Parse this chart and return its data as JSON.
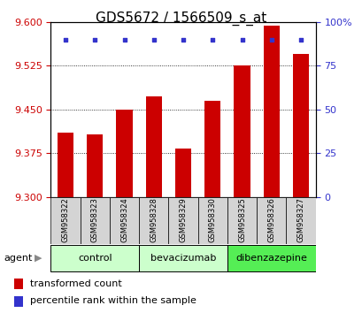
{
  "title": "GDS5672 / 1566509_s_at",
  "categories": [
    "GSM958322",
    "GSM958323",
    "GSM958324",
    "GSM958328",
    "GSM958329",
    "GSM958330",
    "GSM958325",
    "GSM958326",
    "GSM958327"
  ],
  "bar_values": [
    9.41,
    9.407,
    9.45,
    9.472,
    9.383,
    9.465,
    9.525,
    9.593,
    9.545
  ],
  "percentile_values": [
    90,
    90,
    90,
    90,
    90,
    90,
    90,
    90,
    90
  ],
  "bar_color": "#cc0000",
  "dot_color": "#3333cc",
  "ylim_left": [
    9.3,
    9.6
  ],
  "ylim_right": [
    0,
    100
  ],
  "yticks_left": [
    9.3,
    9.375,
    9.45,
    9.525,
    9.6
  ],
  "yticks_right": [
    0,
    25,
    50,
    75,
    100
  ],
  "groups": [
    {
      "label": "control",
      "start": 0,
      "end": 3,
      "color": "#ccffcc"
    },
    {
      "label": "bevacizumab",
      "start": 3,
      "end": 6,
      "color": "#ccffcc"
    },
    {
      "label": "dibenzazepine",
      "start": 6,
      "end": 9,
      "color": "#55ee55"
    }
  ],
  "legend_items": [
    {
      "label": "transformed count",
      "color": "#cc0000"
    },
    {
      "label": "percentile rank within the sample",
      "color": "#3333cc"
    }
  ],
  "agent_label": "agent",
  "bar_width": 0.55,
  "bg_color": "#ffffff",
  "grid_color": "#000000",
  "title_fontsize": 11,
  "tick_fontsize": 8,
  "label_fontsize": 8
}
